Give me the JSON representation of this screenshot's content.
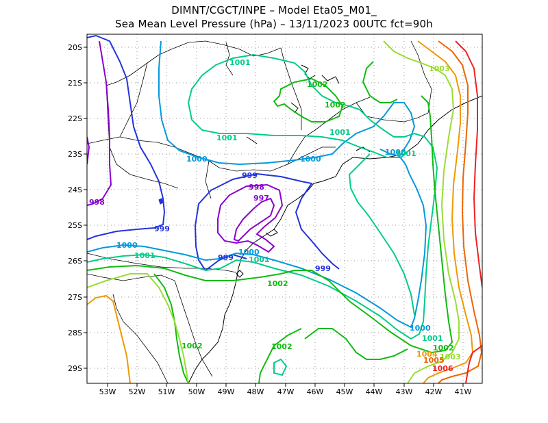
{
  "header": {
    "line1": "DIMNT/CGCT/INPE –  Model Eta05_M01_",
    "line2": "Sea Mean Level Pressure (hPa) – 13/11/2023 00UTC fct=90h"
  },
  "axes": {
    "lat_labels": [
      "20S",
      "21S",
      "22S",
      "23S",
      "24S",
      "25S",
      "26S",
      "27S",
      "28S",
      "29S"
    ],
    "lon_labels": [
      "53W",
      "52W",
      "51W",
      "50W",
      "49W",
      "48W",
      "47W",
      "46W",
      "45W",
      "44W",
      "43W",
      "42W",
      "41W"
    ]
  },
  "colors": {
    "c997": "#8800cc",
    "c998": "#8800cc",
    "c999": "#2233dd",
    "c1000": "#0099dd",
    "c1001": "#00cc88",
    "c1002": "#11bb11",
    "c1003": "#99dd33",
    "c1004": "#ee9900",
    "c1005": "#ee6600",
    "c1006": "#ee2222",
    "border": "#000000",
    "grid": "#999999"
  },
  "contour_labels": {
    "l997": "997",
    "l998a": "998",
    "l998b": "998",
    "l999a": "999",
    "l999b": "999",
    "l999c": "999",
    "l999d": "999",
    "l1000a": "1000",
    "l1000b": "1000",
    "l1000c": "1000",
    "l1000d": "1000",
    "l1000e": "1000",
    "l1000f": "1000",
    "l1001a": "1001",
    "l1001b": "1001",
    "l1001c": "1001",
    "l1001d": "1001",
    "l1001e": "1001",
    "l1001f": "1001",
    "l1001g": "1001",
    "l1002a": "1002",
    "l1002b": "1002",
    "l1002c": "1002",
    "l1002d": "1002",
    "l1002e": "1002",
    "l1002f": "1002",
    "l1003a": "1003",
    "l1003b": "1003",
    "l1004": "1004",
    "l1005": "1005",
    "l1006": "1006"
  }
}
